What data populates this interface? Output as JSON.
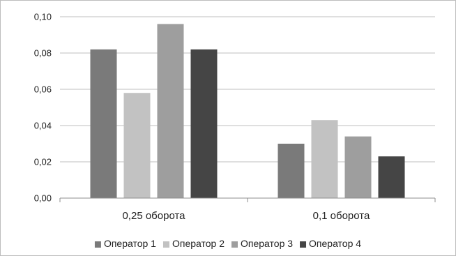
{
  "chart_data": {
    "type": "bar",
    "title": "",
    "xlabel": "",
    "ylabel": "",
    "categories": [
      "0,25 оборота",
      "0,1 оборота"
    ],
    "series": [
      {
        "name": "Оператор 1",
        "values": [
          0.082,
          0.03
        ],
        "color": "#7a7a7a"
      },
      {
        "name": "Оператор 2",
        "values": [
          0.058,
          0.043
        ],
        "color": "#c2c2c2"
      },
      {
        "name": "Оператор 3",
        "values": [
          0.096,
          0.034
        ],
        "color": "#9e9e9e"
      },
      {
        "name": "Оператор 4",
        "values": [
          0.082,
          0.023
        ],
        "color": "#454545"
      }
    ],
    "ylim": [
      0,
      0.1
    ],
    "yticks": [
      "0,00",
      "0,02",
      "0,04",
      "0,06",
      "0,08",
      "0,10"
    ],
    "grid": true,
    "legend_position": "bottom"
  }
}
